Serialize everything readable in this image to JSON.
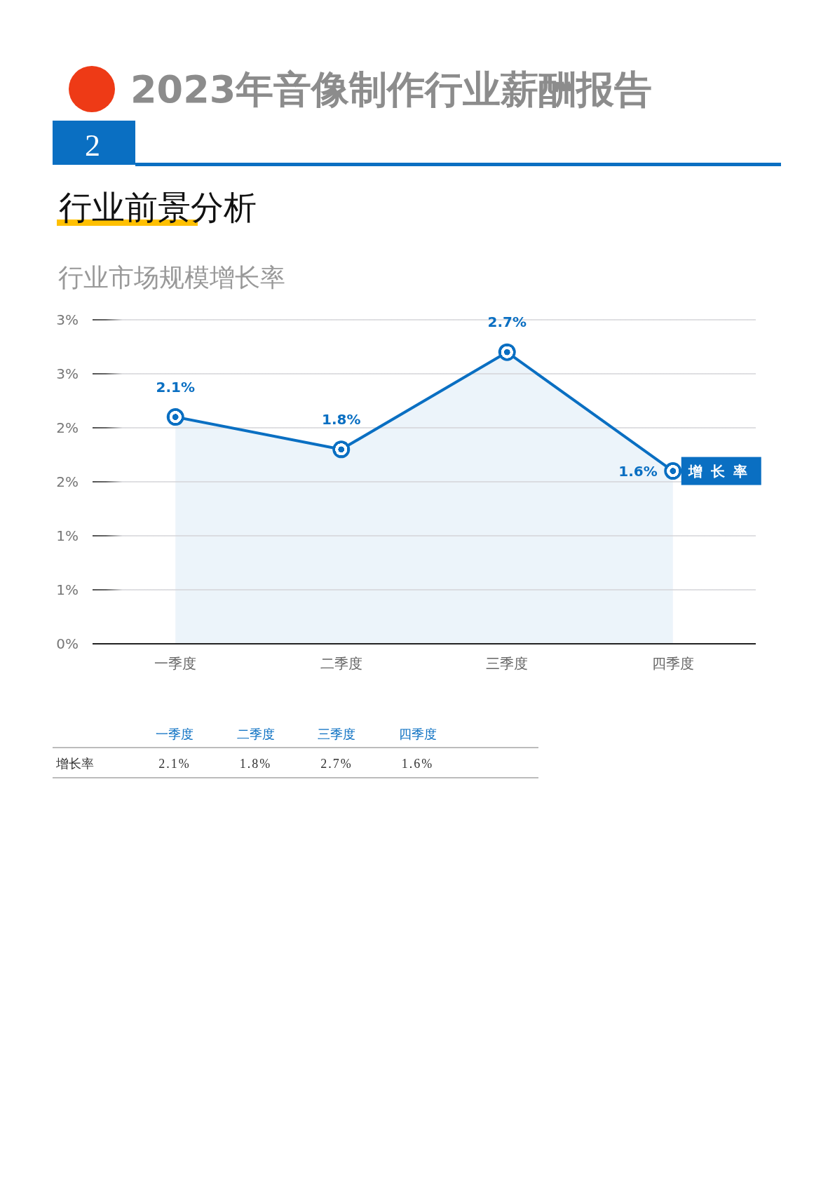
{
  "chart_data": {
    "type": "area",
    "title": "行业市场规模增长率",
    "annotations": [
      "2023年音像制作行业薪酬报告",
      "2",
      "行业前景分析"
    ],
    "categories": [
      "一季度",
      "二季度",
      "三季度",
      "四季度"
    ],
    "series": [
      {
        "name": "增长率",
        "color": "#0a6fc2",
        "values": [
          2.1,
          1.8,
          2.7,
          1.6
        ],
        "value_labels": [
          "2.1%",
          "1.8%",
          "2.7%",
          "1.6%"
        ]
      }
    ],
    "ylim": [
      0,
      3
    ],
    "yticks": [
      {
        "value": 0,
        "label": "0%"
      },
      {
        "value": 0.5,
        "label": "1%"
      },
      {
        "value": 1,
        "label": "1%"
      },
      {
        "value": 1.5,
        "label": "2%"
      },
      {
        "value": 2,
        "label": "2%"
      },
      {
        "value": 2.5,
        "label": "3%"
      },
      {
        "value": 3,
        "label": "3%"
      }
    ],
    "grid": "y",
    "marker": "circle"
  }
}
